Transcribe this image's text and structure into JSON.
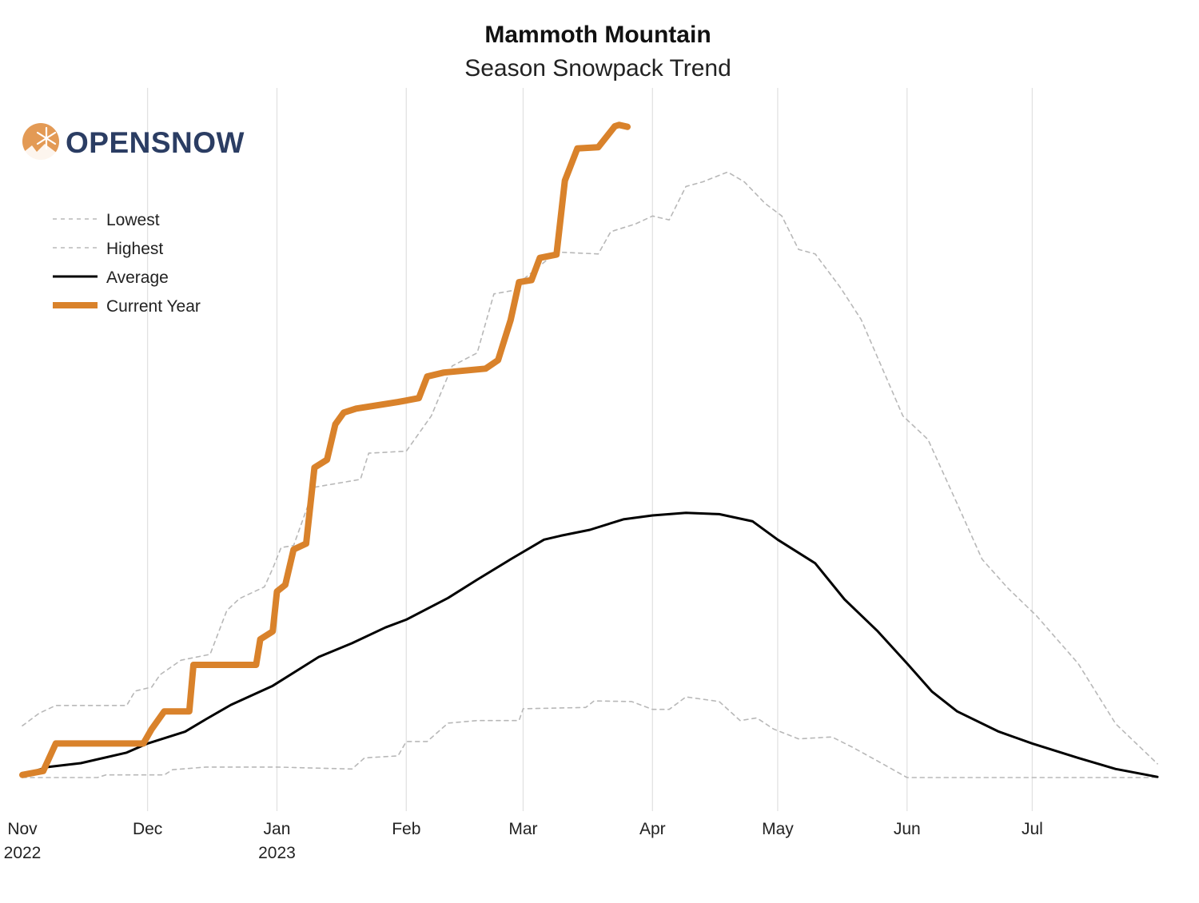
{
  "chart_data": {
    "type": "line",
    "title": "Mammoth Mountain",
    "subtitle": "Season Snowpack Trend",
    "xlabel": "",
    "ylabel": "",
    "xlim": [
      "2022-11-01",
      "2023-07-31"
    ],
    "ylim": [
      0,
      102
    ],
    "y_axis_labels_shown": false,
    "grid": "vertical month lines",
    "legend_placement": "top-left",
    "x_ticks": [
      {
        "date": "2022-11-01",
        "label": "Nov",
        "year": "2022"
      },
      {
        "date": "2022-12-01",
        "label": "Dec",
        "year": ""
      },
      {
        "date": "2023-01-01",
        "label": "Jan",
        "year": "2023"
      },
      {
        "date": "2023-02-01",
        "label": "Feb",
        "year": ""
      },
      {
        "date": "2023-03-01",
        "label": "Mar",
        "year": ""
      },
      {
        "date": "2023-04-01",
        "label": "Apr",
        "year": ""
      },
      {
        "date": "2023-05-01",
        "label": "May",
        "year": ""
      },
      {
        "date": "2023-06-01",
        "label": "Jun",
        "year": ""
      },
      {
        "date": "2023-07-01",
        "label": "Jul",
        "year": ""
      }
    ],
    "series": [
      {
        "name": "Lowest",
        "color": "#b8b8b8",
        "style": "dashed",
        "points": [
          [
            "2022-11-01",
            0
          ],
          [
            "2022-11-19",
            0
          ],
          [
            "2022-11-21",
            0.4
          ],
          [
            "2022-12-05",
            0.4
          ],
          [
            "2022-12-07",
            1.2
          ],
          [
            "2022-12-15",
            1.6
          ],
          [
            "2023-01-01",
            1.6
          ],
          [
            "2023-01-19",
            1.3
          ],
          [
            "2023-01-22",
            3.0
          ],
          [
            "2023-01-30",
            3.3
          ],
          [
            "2023-02-01",
            5.5
          ],
          [
            "2023-02-06",
            5.5
          ],
          [
            "2023-02-11",
            8.3
          ],
          [
            "2023-02-18",
            8.7
          ],
          [
            "2023-02-28",
            8.7
          ],
          [
            "2023-03-01",
            10.5
          ],
          [
            "2023-03-16",
            10.7
          ],
          [
            "2023-03-18",
            11.7
          ],
          [
            "2023-03-27",
            11.6
          ],
          [
            "2023-04-01",
            10.4
          ],
          [
            "2023-04-05",
            10.4
          ],
          [
            "2023-04-09",
            12.3
          ],
          [
            "2023-04-17",
            11.6
          ],
          [
            "2023-04-22",
            8.7
          ],
          [
            "2023-04-26",
            9.1
          ],
          [
            "2023-04-30",
            7.4
          ],
          [
            "2023-05-06",
            5.9
          ],
          [
            "2023-05-14",
            6.2
          ],
          [
            "2023-05-19",
            4.6
          ],
          [
            "2023-05-25",
            2.5
          ],
          [
            "2023-06-01",
            0
          ],
          [
            "2023-07-31",
            0
          ]
        ]
      },
      {
        "name": "Highest",
        "color": "#b8b8b8",
        "style": "dashed",
        "points": [
          [
            "2022-11-01",
            7.9
          ],
          [
            "2022-11-05",
            9.8
          ],
          [
            "2022-11-09",
            11.0
          ],
          [
            "2022-11-26",
            11.0
          ],
          [
            "2022-11-28",
            13.2
          ],
          [
            "2022-12-02",
            13.8
          ],
          [
            "2022-12-04",
            15.7
          ],
          [
            "2022-12-09",
            17.9
          ],
          [
            "2022-12-16",
            18.8
          ],
          [
            "2022-12-20",
            25.5
          ],
          [
            "2022-12-23",
            27.3
          ],
          [
            "2022-12-29",
            29.1
          ],
          [
            "2022-12-31",
            31.9
          ],
          [
            "2023-01-02",
            35.1
          ],
          [
            "2023-01-05",
            35.4
          ],
          [
            "2023-01-10",
            44.3
          ],
          [
            "2023-01-21",
            45.5
          ],
          [
            "2023-01-23",
            49.5
          ],
          [
            "2023-02-01",
            49.8
          ],
          [
            "2023-02-07",
            55.2
          ],
          [
            "2023-02-12",
            62.8
          ],
          [
            "2023-02-18",
            64.8
          ],
          [
            "2023-02-22",
            73.8
          ],
          [
            "2023-02-28",
            74.5
          ],
          [
            "2023-03-01",
            76.0
          ],
          [
            "2023-03-09",
            80.2
          ],
          [
            "2023-03-19",
            79.9
          ],
          [
            "2023-03-22",
            83.3
          ],
          [
            "2023-03-28",
            84.5
          ],
          [
            "2023-04-01",
            85.7
          ],
          [
            "2023-04-05",
            85.1
          ],
          [
            "2023-04-09",
            90.2
          ],
          [
            "2023-04-13",
            90.9
          ],
          [
            "2023-04-19",
            92.4
          ],
          [
            "2023-04-23",
            90.9
          ],
          [
            "2023-04-28",
            87.6
          ],
          [
            "2023-05-02",
            85.7
          ],
          [
            "2023-05-06",
            80.6
          ],
          [
            "2023-05-10",
            79.9
          ],
          [
            "2023-05-16",
            74.8
          ],
          [
            "2023-05-21",
            69.9
          ],
          [
            "2023-05-31",
            55.2
          ],
          [
            "2023-06-06",
            51.6
          ],
          [
            "2023-06-13",
            41.8
          ],
          [
            "2023-06-19",
            33.3
          ],
          [
            "2023-06-25",
            29.0
          ],
          [
            "2023-07-02",
            24.7
          ],
          [
            "2023-07-12",
            17.4
          ],
          [
            "2023-07-21",
            8.2
          ],
          [
            "2023-07-31",
            2.1
          ]
        ]
      },
      {
        "name": "Average",
        "color": "#000000",
        "style": "solid",
        "points": [
          [
            "2022-11-01",
            0.4
          ],
          [
            "2022-11-07",
            1.6
          ],
          [
            "2022-11-15",
            2.2
          ],
          [
            "2022-11-26",
            3.8
          ],
          [
            "2022-12-01",
            5.2
          ],
          [
            "2022-12-10",
            7.0
          ],
          [
            "2022-12-15",
            8.9
          ],
          [
            "2022-12-21",
            11.1
          ],
          [
            "2022-12-31",
            14.0
          ],
          [
            "2023-01-11",
            18.4
          ],
          [
            "2023-01-19",
            20.5
          ],
          [
            "2023-01-27",
            22.9
          ],
          [
            "2023-02-01",
            24.1
          ],
          [
            "2023-02-11",
            27.4
          ],
          [
            "2023-02-18",
            30.2
          ],
          [
            "2023-02-26",
            33.3
          ],
          [
            "2023-03-06",
            36.3
          ],
          [
            "2023-03-10",
            36.9
          ],
          [
            "2023-03-17",
            37.8
          ],
          [
            "2023-03-25",
            39.4
          ],
          [
            "2023-04-01",
            40.0
          ],
          [
            "2023-04-09",
            40.4
          ],
          [
            "2023-04-17",
            40.2
          ],
          [
            "2023-04-25",
            39.1
          ],
          [
            "2023-05-01",
            36.3
          ],
          [
            "2023-05-10",
            32.7
          ],
          [
            "2023-05-17",
            27.2
          ],
          [
            "2023-05-25",
            22.3
          ],
          [
            "2023-06-01",
            17.4
          ],
          [
            "2023-06-07",
            13.1
          ],
          [
            "2023-06-13",
            10.1
          ],
          [
            "2023-06-23",
            7.0
          ],
          [
            "2023-07-01",
            5.2
          ],
          [
            "2023-07-12",
            3.0
          ],
          [
            "2023-07-21",
            1.3
          ],
          [
            "2023-07-31",
            0.1
          ]
        ]
      },
      {
        "name": "Current Year",
        "color": "#d9822b",
        "style": "thick",
        "points": [
          [
            "2022-11-01",
            0.4
          ],
          [
            "2022-11-06",
            1.0
          ],
          [
            "2022-11-09",
            5.2
          ],
          [
            "2022-11-30",
            5.2
          ],
          [
            "2022-12-02",
            7.4
          ],
          [
            "2022-12-05",
            10.1
          ],
          [
            "2022-12-11",
            10.1
          ],
          [
            "2022-12-12",
            17.2
          ],
          [
            "2022-12-27",
            17.2
          ],
          [
            "2022-12-28",
            21.1
          ],
          [
            "2022-12-31",
            22.3
          ],
          [
            "2023-01-01",
            28.4
          ],
          [
            "2023-01-03",
            29.4
          ],
          [
            "2023-01-05",
            34.8
          ],
          [
            "2023-01-08",
            35.7
          ],
          [
            "2023-01-10",
            47.3
          ],
          [
            "2023-01-13",
            48.5
          ],
          [
            "2023-01-15",
            53.9
          ],
          [
            "2023-01-17",
            55.7
          ],
          [
            "2023-01-20",
            56.3
          ],
          [
            "2023-01-30",
            57.3
          ],
          [
            "2023-02-04",
            57.9
          ],
          [
            "2023-02-06",
            61.2
          ],
          [
            "2023-02-10",
            61.8
          ],
          [
            "2023-02-20",
            62.4
          ],
          [
            "2023-02-23",
            63.7
          ],
          [
            "2023-02-26",
            69.8
          ],
          [
            "2023-02-28",
            75.6
          ],
          [
            "2023-03-03",
            75.9
          ],
          [
            "2023-03-05",
            79.3
          ],
          [
            "2023-03-09",
            79.8
          ],
          [
            "2023-03-11",
            91.1
          ],
          [
            "2023-03-14",
            96.0
          ],
          [
            "2023-03-19",
            96.2
          ],
          [
            "2023-03-21",
            97.8
          ],
          [
            "2023-03-23",
            99.4
          ],
          [
            "2023-03-24",
            99.6
          ],
          [
            "2023-03-26",
            99.3
          ]
        ]
      }
    ]
  },
  "logo": {
    "text": "OPENSNOW",
    "icon": "snowflake-mountain-icon",
    "colors": {
      "icon": "#e39a55",
      "text": "#2b3d63"
    }
  }
}
